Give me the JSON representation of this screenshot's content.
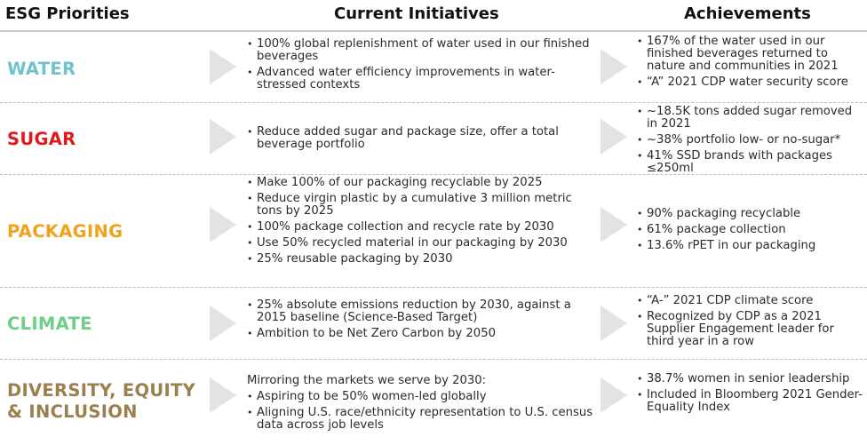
{
  "headers": {
    "priorities": "ESG Priorities",
    "initiatives": "Current Initiatives",
    "achievements": "Achievements"
  },
  "rows": [
    {
      "label_lines": [
        "WATER"
      ],
      "color": "#6fc3c9",
      "intro": "",
      "initiatives": [
        "100% global replenishment of water used in our finished beverages",
        "Advanced water efficiency improvements in water-stressed contexts"
      ],
      "achievements": [
        "167% of the water used in our finished beverages returned to nature and communities in 2021",
        "“A” 2021 CDP water security score"
      ]
    },
    {
      "label_lines": [
        "SUGAR"
      ],
      "color": "#e0191b",
      "intro": "",
      "initiatives": [
        "Reduce added sugar and package size, offer a total beverage portfolio"
      ],
      "achievements": [
        "~18.5K tons added sugar removed in 2021",
        "~38% portfolio low- or no-sugar*",
        "41% SSD brands with packages ≤250ml"
      ]
    },
    {
      "label_lines": [
        "PACKAGING"
      ],
      "color": "#f0a31c",
      "intro": "",
      "initiatives": [
        "Make 100% of our packaging recyclable by 2025",
        "Reduce virgin plastic by a cumulative 3 million metric tons by 2025",
        "100% package collection and recycle rate by 2030",
        "Use 50% recycled material in our packaging by 2030",
        "25% reusable packaging by 2030"
      ],
      "achievements": [
        "90% packaging recyclable",
        "61% package collection",
        "13.6% rPET in our packaging"
      ]
    },
    {
      "label_lines": [
        "CLIMATE"
      ],
      "color": "#6fcf8a",
      "intro": "",
      "initiatives": [
        "25% absolute emissions reduction by 2030, against a 2015 baseline (Science-Based Target)",
        "Ambition to be Net Zero Carbon by 2050"
      ],
      "achievements": [
        "“A-” 2021 CDP climate score",
        "Recognized by CDP as a 2021 Supplier Engagement leader for third year in a row"
      ]
    },
    {
      "label_lines": [
        "DIVERSITY, EQUITY",
        "& INCLUSION"
      ],
      "color": "#9b7f4f",
      "intro": "Mirroring the markets we serve by 2030:",
      "initiatives": [
        "Aspiring to be 50% women-led globally",
        "Aligning U.S. race/ethnicity representation to U.S. census data across job levels"
      ],
      "achievements": [
        "38.7% women in senior leadership",
        "Included in Bloomberg 2021 Gender-Equality Index"
      ]
    }
  ]
}
